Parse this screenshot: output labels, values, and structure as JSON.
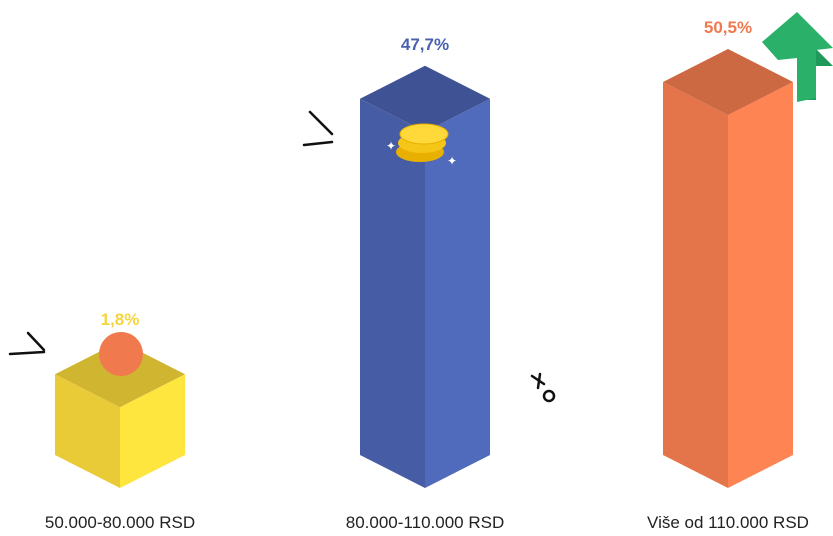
{
  "chart_data": {
    "type": "bar",
    "categories": [
      "50.000-80.000 RSD",
      "80.000-110.000 RSD",
      "Više od 110.000 RSD"
    ],
    "values": [
      1.8,
      47.7,
      50.5
    ],
    "value_labels": [
      "1,8%",
      "47,7%",
      "50,5%"
    ],
    "colors": [
      "#f5d53a",
      "#4a62ae",
      "#f07a4e"
    ]
  }
}
